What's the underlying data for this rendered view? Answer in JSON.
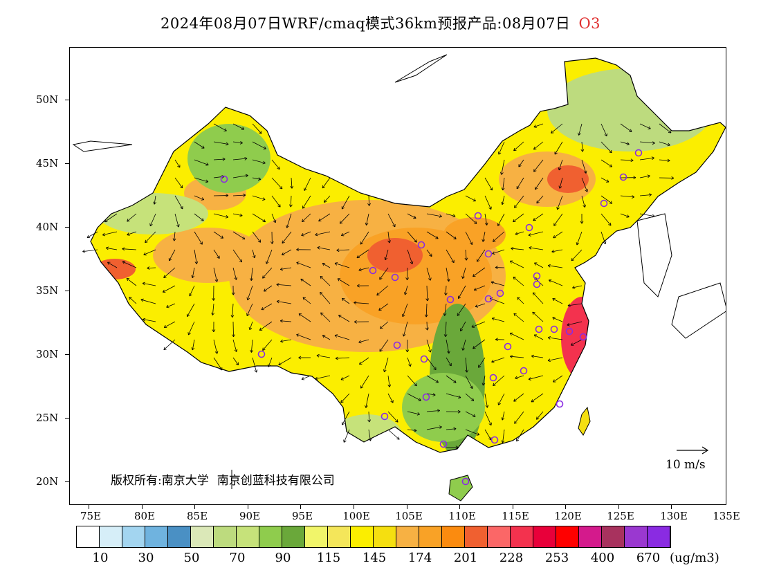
{
  "title": {
    "main": "2024年08月07日WRF/cmaq模式36km预报产品:08月07日",
    "species": "O3",
    "species_color": "#e03030"
  },
  "map": {
    "lat_labels": [
      "50N",
      "45N",
      "40N",
      "35N",
      "30N",
      "25N",
      "20N"
    ],
    "lon_labels": [
      "75E",
      "80E",
      "85E",
      "90E",
      "95E",
      "100E",
      "105E",
      "110E",
      "115E",
      "120E",
      "125E",
      "130E",
      "135E"
    ],
    "copyright": "版权所有:南京大学",
    "copyright_company": "南京创蓝科技有限公司",
    "wind_reference": "10 m/s",
    "marker_color": "#8a2be2"
  },
  "legend": {
    "colors": [
      "#ffffff",
      "#d6eef8",
      "#a3d5f0",
      "#6fb3df",
      "#4a90c4",
      "#dbe8b8",
      "#bddb7e",
      "#c6e27a",
      "#8fcc4d",
      "#6aa83a",
      "#f1f56a",
      "#f4e65a",
      "#fbee00",
      "#f5df10",
      "#f7b143",
      "#f9a226",
      "#fb8b0f",
      "#f06030",
      "#fb6767",
      "#f3324e",
      "#e8003a",
      "#ff0000",
      "#d41a8c",
      "#a8325e",
      "#9a38d0",
      "#8a2be2"
    ],
    "labels": [
      "10",
      "30",
      "50",
      "70",
      "90",
      "115",
      "145",
      "174",
      "201",
      "228",
      "253",
      "400",
      "670"
    ],
    "unit": "(ug/m3)"
  }
}
